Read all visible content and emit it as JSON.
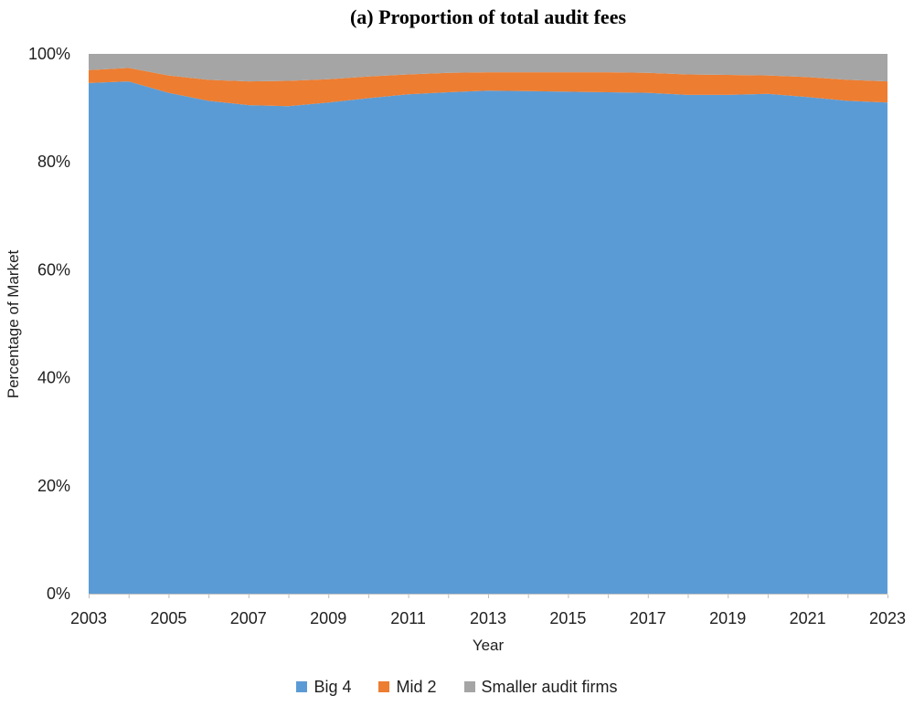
{
  "chart_data": {
    "type": "area",
    "stacked": true,
    "percent_stacked": true,
    "title": "(a) Proportion of total audit fees",
    "xlabel": "Year",
    "ylabel": "Percentage of Market",
    "ylim": [
      0,
      100
    ],
    "grid": false,
    "legend_position": "bottom",
    "x": [
      2003,
      2004,
      2005,
      2006,
      2007,
      2008,
      2009,
      2010,
      2011,
      2012,
      2013,
      2014,
      2015,
      2016,
      2017,
      2018,
      2019,
      2020,
      2021,
      2022,
      2023
    ],
    "x_label_every": 2,
    "ytick_values": [
      0,
      20,
      40,
      60,
      80,
      100
    ],
    "ytick_labels": [
      "0%",
      "20%",
      "40%",
      "60%",
      "80%",
      "100%"
    ],
    "xtick_labels": [
      "2003",
      "2005",
      "2007",
      "2009",
      "2011",
      "2013",
      "2015",
      "2017",
      "2019",
      "2021",
      "2023"
    ],
    "series": [
      {
        "name": "Big 4",
        "color": "#5B9BD5",
        "values": [
          94.6,
          94.9,
          92.8,
          91.3,
          90.5,
          90.3,
          91.0,
          91.8,
          92.5,
          92.9,
          93.2,
          93.1,
          93.0,
          92.9,
          92.8,
          92.4,
          92.4,
          92.6,
          92.0,
          91.3,
          91.0
        ]
      },
      {
        "name": "Mid 2",
        "color": "#ED7D31",
        "values": [
          2.4,
          2.5,
          3.2,
          3.9,
          4.4,
          4.7,
          4.3,
          4.0,
          3.7,
          3.6,
          3.4,
          3.5,
          3.6,
          3.7,
          3.7,
          3.8,
          3.7,
          3.4,
          3.7,
          3.9,
          3.9
        ]
      },
      {
        "name": "Smaller audit firms",
        "color": "#A5A5A5",
        "values": [
          3.0,
          2.6,
          4.0,
          4.8,
          5.1,
          5.0,
          4.7,
          4.2,
          3.8,
          3.5,
          3.4,
          3.4,
          3.4,
          3.4,
          3.5,
          3.8,
          3.9,
          4.0,
          4.3,
          4.8,
          5.1
        ]
      }
    ],
    "axis_color": "#BFBFBF",
    "text_color": "#1f1f1f"
  }
}
